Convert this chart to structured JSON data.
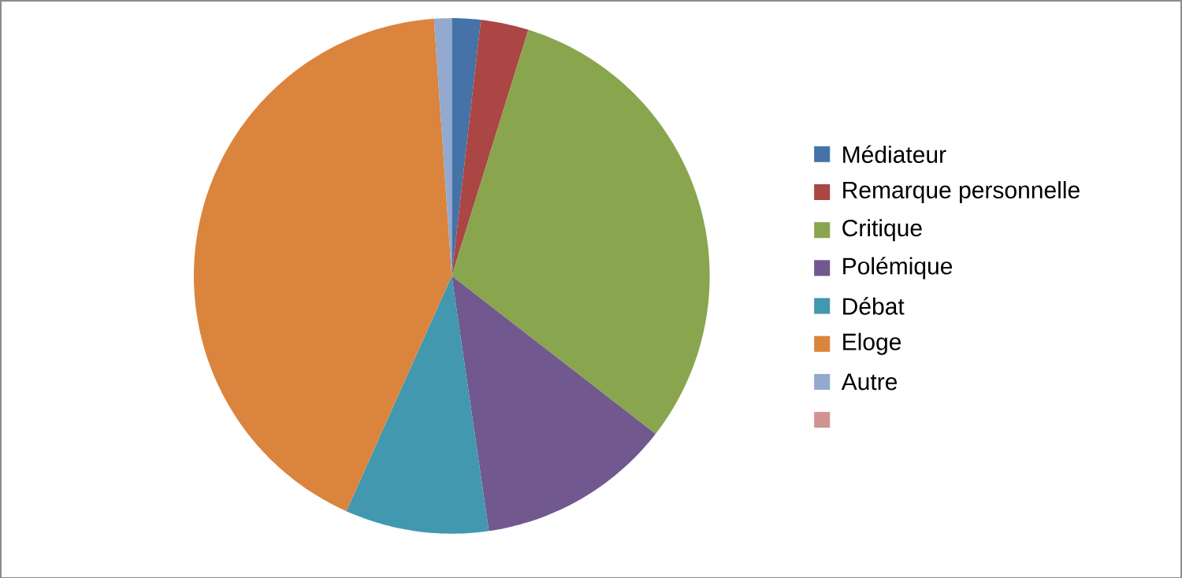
{
  "chart_data": {
    "type": "pie",
    "categories": [
      "Médiateur",
      "Remarque personnelle",
      "Critique",
      "Polémique",
      "Débat",
      "Eloge",
      "Autre",
      null
    ],
    "values": [
      1.8,
      3,
      30.7,
      12.2,
      9,
      42.2,
      1.1,
      0
    ],
    "colors": [
      "#4572a7",
      "#aa4643",
      "#89a54e",
      "#71588f",
      "#4198af",
      "#db843d",
      "#93a9cf",
      "#d19392"
    ],
    "legend": "right"
  }
}
